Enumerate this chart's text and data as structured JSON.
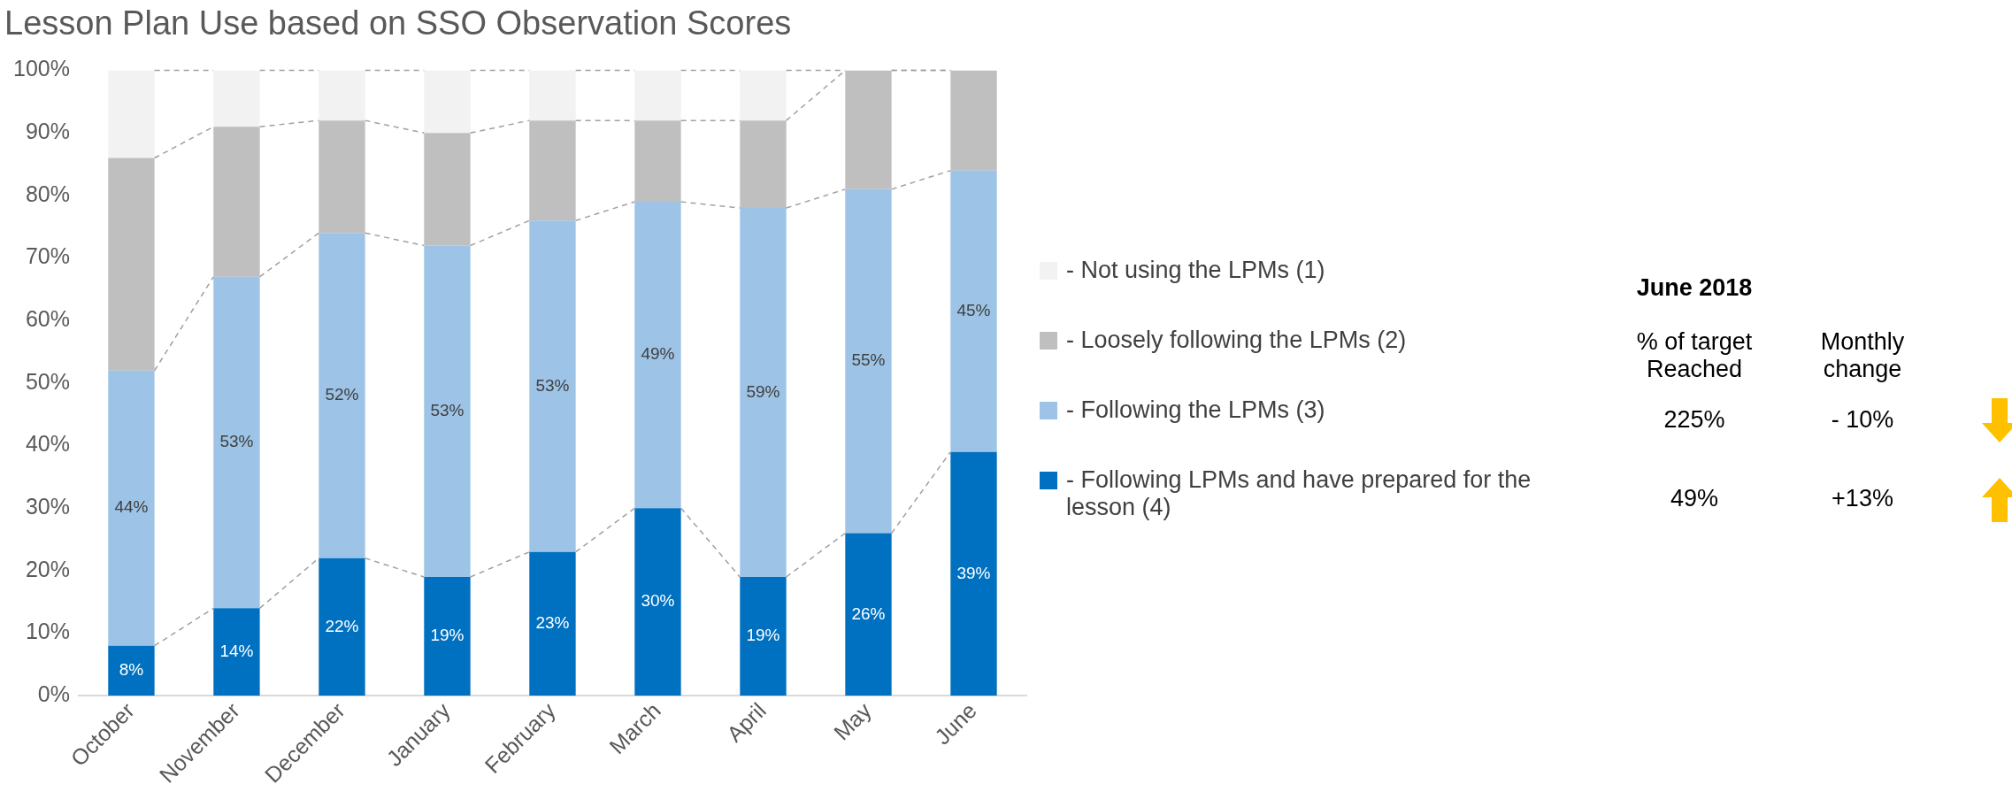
{
  "chart_data": {
    "type": "bar",
    "stacked": true,
    "title": "Lesson Plan Use based on SSO Observation Scores",
    "categories": [
      "October",
      "November",
      "December",
      "January",
      "February",
      "March",
      "April",
      "May",
      "June"
    ],
    "series": [
      {
        "name": "- Following LPMs and have prepared for the lesson (4)",
        "color": "#0070c0",
        "values": [
          8,
          14,
          22,
          19,
          23,
          30,
          19,
          26,
          39
        ],
        "value_labels": [
          "8%",
          "14%",
          "22%",
          "19%",
          "23%",
          "30%",
          "19%",
          "26%",
          "39%"
        ]
      },
      {
        "name": "- Following the LPMs (3)",
        "color": "#9dc3e6",
        "values": [
          44,
          53,
          52,
          53,
          53,
          49,
          59,
          55,
          45
        ],
        "value_labels": [
          "44%",
          "53%",
          "52%",
          "53%",
          "53%",
          "49%",
          "59%",
          "55%",
          "45%"
        ]
      },
      {
        "name": "- Loosely following the LPMs (2)",
        "color": "#bfbfbf",
        "values": [
          34,
          24,
          18,
          18,
          16,
          13,
          14,
          19,
          16
        ]
      },
      {
        "name": "- Not using the LPMs (1)",
        "color": "#f2f2f2",
        "values": [
          14,
          9,
          8,
          10,
          8,
          8,
          8,
          0,
          0
        ]
      }
    ],
    "ylim": [
      0,
      100
    ],
    "yticks": [
      {
        "value": 0,
        "label": "0%"
      },
      {
        "value": 10,
        "label": "10%"
      },
      {
        "value": 20,
        "label": "20%"
      },
      {
        "value": 30,
        "label": "30%"
      },
      {
        "value": 40,
        "label": "40%"
      },
      {
        "value": 50,
        "label": "50%"
      },
      {
        "value": 60,
        "label": "60%"
      },
      {
        "value": 70,
        "label": "70%"
      },
      {
        "value": 80,
        "label": "80%"
      },
      {
        "value": 90,
        "label": "90%"
      },
      {
        "value": 100,
        "label": "100%"
      }
    ],
    "grid": false,
    "legend": "right",
    "annotations": [
      "June  2018",
      "% of target Reached",
      "Monthly change",
      "225%",
      "- 10%",
      "49%",
      "+13%"
    ]
  }
}
